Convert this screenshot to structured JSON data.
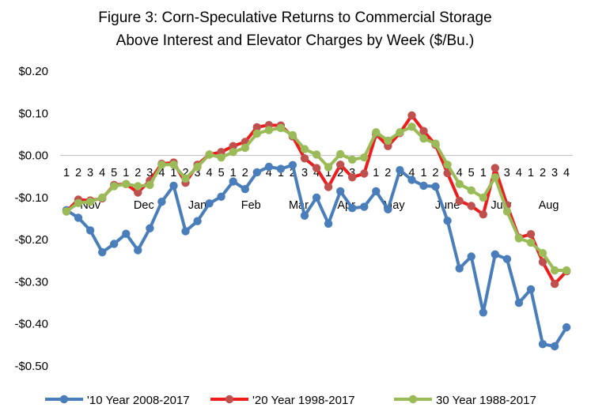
{
  "chart_data": {
    "type": "line",
    "title": "Figure 3: Corn-Speculative Returns to Commercial Storage Above Interest and Elevator Charges by Week ($/Bu.)",
    "title_lines": [
      "Figure 3: Corn-Speculative Returns to Commercial Storage",
      "Above Interest and Elevator Charges by Week ($/Bu.)"
    ],
    "xlabel": "",
    "ylabel": "",
    "ylim": [
      -0.5,
      0.2
    ],
    "yticks": [
      0.2,
      0.1,
      0.0,
      -0.1,
      -0.2,
      -0.3,
      -0.4,
      -0.5
    ],
    "ytick_labels": [
      "$0.20",
      "$0.10",
      "$0.00",
      "-$0.10",
      "-$0.20",
      "-$0.30",
      "-$0.40",
      "-$0.50"
    ],
    "grid": false,
    "legend_position": "bottom",
    "x": [
      "1",
      "2",
      "3",
      "4",
      "5",
      "1",
      "2",
      "3",
      "4",
      "1",
      "2",
      "3",
      "4",
      "5",
      "1",
      "2",
      "3",
      "4",
      "1",
      "2",
      "3",
      "4",
      "1",
      "2",
      "3",
      "4",
      "1",
      "2",
      "3",
      "4",
      "1",
      "2",
      "3",
      "4",
      "5",
      "1",
      "2",
      "3",
      "4",
      "1",
      "2",
      "3",
      "4"
    ],
    "week_labels": [
      "1",
      "2",
      "3",
      "4",
      "5",
      "1",
      "2",
      "3",
      "4",
      "1",
      "2",
      "3",
      "4",
      "5",
      "1",
      "2",
      "3",
      "4",
      "1",
      "2",
      "3",
      "4",
      "1",
      "2",
      "3",
      "4",
      "1",
      "2",
      "3",
      "4",
      "1",
      "2",
      "3",
      "4",
      "5",
      "1",
      "2",
      "3",
      "4",
      "1",
      "2",
      "3",
      "4"
    ],
    "months": [
      {
        "label": "Nov",
        "start": 0,
        "count": 5
      },
      {
        "label": "Dec",
        "start": 5,
        "count": 4
      },
      {
        "label": "Jan",
        "start": 9,
        "count": 5
      },
      {
        "label": "Feb",
        "start": 14,
        "count": 4
      },
      {
        "label": "Mar",
        "start": 18,
        "count": 4
      },
      {
        "label": "Apr",
        "start": 22,
        "count": 4
      },
      {
        "label": "May",
        "start": 26,
        "count": 4
      },
      {
        "label": "June",
        "start": 30,
        "count": 5
      },
      {
        "label": "July",
        "start": 35,
        "count": 4
      },
      {
        "label": "Aug",
        "start": 39,
        "count": 4
      }
    ],
    "series": [
      {
        "name": "'10 Year 2008-2017",
        "color": "#4a7ebb",
        "marker_color": "#4a7ebb",
        "values": [
          -0.13,
          -0.148,
          -0.178,
          -0.23,
          -0.21,
          -0.186,
          -0.225,
          -0.173,
          -0.11,
          -0.072,
          -0.18,
          -0.156,
          -0.114,
          -0.098,
          -0.062,
          -0.08,
          -0.04,
          -0.027,
          -0.032,
          -0.023,
          -0.143,
          -0.1,
          -0.162,
          -0.085,
          -0.125,
          -0.122,
          -0.085,
          -0.128,
          -0.035,
          -0.058,
          -0.072,
          -0.074,
          -0.155,
          -0.268,
          -0.24,
          -0.373,
          -0.235,
          -0.246,
          -0.35,
          -0.318,
          -0.448,
          -0.453,
          -0.408
        ]
      },
      {
        "name": "'20 Year 1998-2017",
        "color": "#ee1c1c",
        "marker_color": "#c0504d",
        "values": [
          -0.133,
          -0.105,
          -0.107,
          -0.102,
          -0.07,
          -0.068,
          -0.088,
          -0.06,
          -0.02,
          -0.017,
          -0.065,
          -0.022,
          0.002,
          0.008,
          0.022,
          0.032,
          0.067,
          0.072,
          0.071,
          0.045,
          -0.007,
          -0.03,
          -0.075,
          -0.022,
          -0.052,
          -0.043,
          0.05,
          0.022,
          0.053,
          0.095,
          0.058,
          0.025,
          -0.042,
          -0.108,
          -0.12,
          -0.14,
          -0.03,
          -0.118,
          -0.195,
          -0.187,
          -0.253,
          -0.305,
          -0.275
        ]
      },
      {
        "name": "30 Year 1988-2017",
        "color": "#9bbb59",
        "marker_color": "#9bbb59",
        "values": [
          -0.133,
          -0.113,
          -0.11,
          -0.1,
          -0.073,
          -0.068,
          -0.073,
          -0.07,
          -0.022,
          -0.022,
          -0.055,
          -0.027,
          0.002,
          -0.005,
          0.008,
          0.018,
          0.052,
          0.06,
          0.065,
          0.048,
          0.015,
          0.002,
          -0.028,
          0.003,
          -0.01,
          -0.005,
          0.055,
          0.035,
          0.055,
          0.068,
          0.04,
          0.028,
          -0.022,
          -0.068,
          -0.083,
          -0.1,
          -0.052,
          -0.133,
          -0.197,
          -0.207,
          -0.232,
          -0.273,
          -0.273
        ]
      }
    ]
  }
}
